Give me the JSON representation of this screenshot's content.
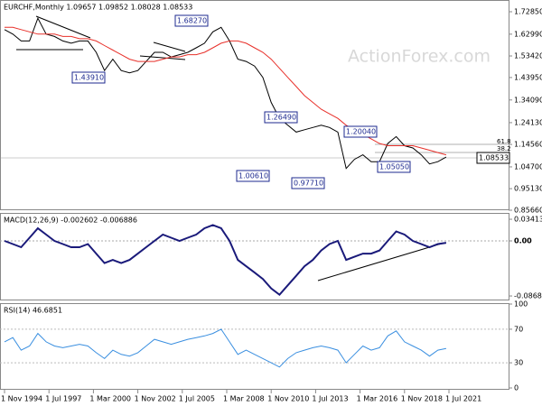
{
  "chart_data": [
    {
      "type": "line",
      "title": "EURCHF,Monthly  1.09657 1.09852 1.08028 1.08533",
      "watermark": "ActionForex.com",
      "annotations": [
        "1.68270",
        "1.43910",
        "1.26490",
        "1.00610",
        "0.97710",
        "1.20040",
        "1.05050",
        "61.8",
        "38.2",
        "1.08533"
      ],
      "x": [
        "1994-11-01",
        "1995-05-01",
        "1995-11-01",
        "1996-05-01",
        "1996-11-01",
        "1997-05-01",
        "1997-11-01",
        "1998-05-01",
        "1998-11-01",
        "1999-05-01",
        "1999-11-01",
        "2000-05-01",
        "2000-11-01",
        "2001-05-01",
        "2001-11-01",
        "2002-05-01",
        "2002-11-01",
        "2003-05-01",
        "2003-11-01",
        "2004-05-01",
        "2004-11-01",
        "2005-05-01",
        "2005-11-01",
        "2006-05-01",
        "2006-11-01",
        "2007-05-01",
        "2007-11-01",
        "2008-05-01",
        "2008-11-01",
        "2009-05-01",
        "2009-11-01",
        "2010-05-01",
        "2010-11-01",
        "2011-05-01",
        "2011-11-01",
        "2012-05-01",
        "2012-11-01",
        "2013-05-01",
        "2013-11-01",
        "2014-05-01",
        "2014-11-01",
        "2015-05-01",
        "2015-11-01",
        "2016-05-01",
        "2016-11-01",
        "2017-05-01",
        "2017-11-01",
        "2018-05-01",
        "2018-11-01",
        "2019-05-01",
        "2019-11-01",
        "2020-05-01",
        "2020-11-01",
        "2021-05-01"
      ],
      "series": [
        {
          "color": "#000000",
          "values": [
            1.65,
            1.63,
            1.6,
            1.6,
            1.7,
            1.63,
            1.62,
            1.6,
            1.59,
            1.6,
            1.6,
            1.55,
            1.47,
            1.52,
            1.47,
            1.46,
            1.47,
            1.51,
            1.55,
            1.55,
            1.53,
            1.54,
            1.55,
            1.57,
            1.59,
            1.64,
            1.66,
            1.6,
            1.52,
            1.51,
            1.49,
            1.44,
            1.33,
            1.26,
            1.23,
            1.2,
            1.21,
            1.22,
            1.23,
            1.22,
            1.2,
            1.04,
            1.08,
            1.1,
            1.07,
            1.07,
            1.15,
            1.18,
            1.14,
            1.13,
            1.1,
            1.06,
            1.07,
            1.09
          ]
        },
        {
          "color": "#e8302a",
          "values": [
            1.66,
            1.66,
            1.65,
            1.64,
            1.63,
            1.63,
            1.63,
            1.62,
            1.62,
            1.61,
            1.61,
            1.6,
            1.58,
            1.56,
            1.54,
            1.52,
            1.51,
            1.51,
            1.51,
            1.52,
            1.53,
            1.53,
            1.54,
            1.54,
            1.55,
            1.57,
            1.59,
            1.6,
            1.6,
            1.59,
            1.57,
            1.55,
            1.52,
            1.48,
            1.44,
            1.4,
            1.36,
            1.33,
            1.3,
            1.28,
            1.26,
            1.23,
            1.21,
            1.19,
            1.17,
            1.15,
            1.14,
            1.14,
            1.14,
            1.14,
            1.13,
            1.12,
            1.11,
            1.1
          ]
        }
      ],
      "ylim": [
        0.8566,
        1.78
      ],
      "yticks": [
        {
          "value": 1.7285,
          "label": "1.72850"
        },
        {
          "value": 1.6299,
          "label": "1.62990"
        },
        {
          "value": 1.5342,
          "label": "1.53420"
        },
        {
          "value": 1.4395,
          "label": "1.43950"
        },
        {
          "value": 1.3409,
          "label": "1.34090"
        },
        {
          "value": 1.2413,
          "label": "1.24130"
        },
        {
          "value": 1.1456,
          "label": "1.14560"
        },
        {
          "value": 1.047,
          "label": "1.04700"
        },
        {
          "value": 0.9513,
          "label": "0.95130"
        },
        {
          "value": 0.8566,
          "label": "0.85660"
        }
      ]
    },
    {
      "type": "line",
      "title": "MACD(12,26,9) -0.002602 -0.006886",
      "series": [
        {
          "color": "#1a1a7a",
          "values": [
            0,
            -0.005,
            -0.01,
            0.005,
            0.02,
            0.01,
            0,
            -0.005,
            -0.01,
            -0.01,
            -0.005,
            -0.02,
            -0.035,
            -0.03,
            -0.035,
            -0.03,
            -0.02,
            -0.01,
            0,
            0.01,
            0.005,
            0,
            0.005,
            0.01,
            0.02,
            0.025,
            0.02,
            0,
            -0.03,
            -0.04,
            -0.05,
            -0.06,
            -0.075,
            -0.085,
            -0.07,
            -0.055,
            -0.04,
            -0.03,
            -0.015,
            -0.005,
            0,
            -0.03,
            -0.025,
            -0.02,
            -0.02,
            -0.015,
            0,
            0.015,
            0.01,
            0,
            -0.005,
            -0.01,
            -0.005,
            -0.003
          ]
        }
      ],
      "ylim": [
        -0.0939,
        0.0427
      ],
      "yticks": [
        0.034137,
        {
          "value": 0,
          "label": "0.00"
        },
        -0.086849
      ]
    },
    {
      "type": "line",
      "title": "RSI(14) 46.6851",
      "series": [
        {
          "color": "#3a8fe0",
          "values": [
            55,
            60,
            45,
            50,
            65,
            55,
            50,
            48,
            50,
            52,
            50,
            42,
            35,
            45,
            40,
            38,
            42,
            50,
            58,
            55,
            52,
            55,
            58,
            60,
            62,
            65,
            70,
            55,
            40,
            45,
            40,
            35,
            30,
            25,
            35,
            42,
            45,
            48,
            50,
            48,
            45,
            30,
            40,
            50,
            45,
            48,
            62,
            68,
            55,
            50,
            45,
            38,
            45,
            47
          ]
        }
      ],
      "ylim": [
        0,
        100
      ],
      "yticks": [
        100,
        70,
        30,
        0
      ],
      "xticks": [
        {
          "value": "1994-11-01",
          "label": "1 Nov 1994"
        },
        {
          "value": "1997-07-01",
          "label": "1 Jul 1997"
        },
        {
          "value": "2000-03-01",
          "label": "1 Mar 2000"
        },
        {
          "value": "2002-11-01",
          "label": "1 Nov 2002"
        },
        {
          "value": "2005-07-01",
          "label": "1 Jul 2005"
        },
        {
          "value": "2008-03-01",
          "label": "1 Mar 2008"
        },
        {
          "value": "2010-11-01",
          "label": "1 Nov 2010"
        },
        {
          "value": "2013-07-01",
          "label": "1 Jul 2013"
        },
        {
          "value": "2016-03-01",
          "label": "1 Mar 2016"
        },
        {
          "value": "2018-11-01",
          "label": "1 Nov 2018"
        },
        {
          "value": "2021-07-01",
          "label": "1 Jul 2021"
        }
      ]
    }
  ]
}
